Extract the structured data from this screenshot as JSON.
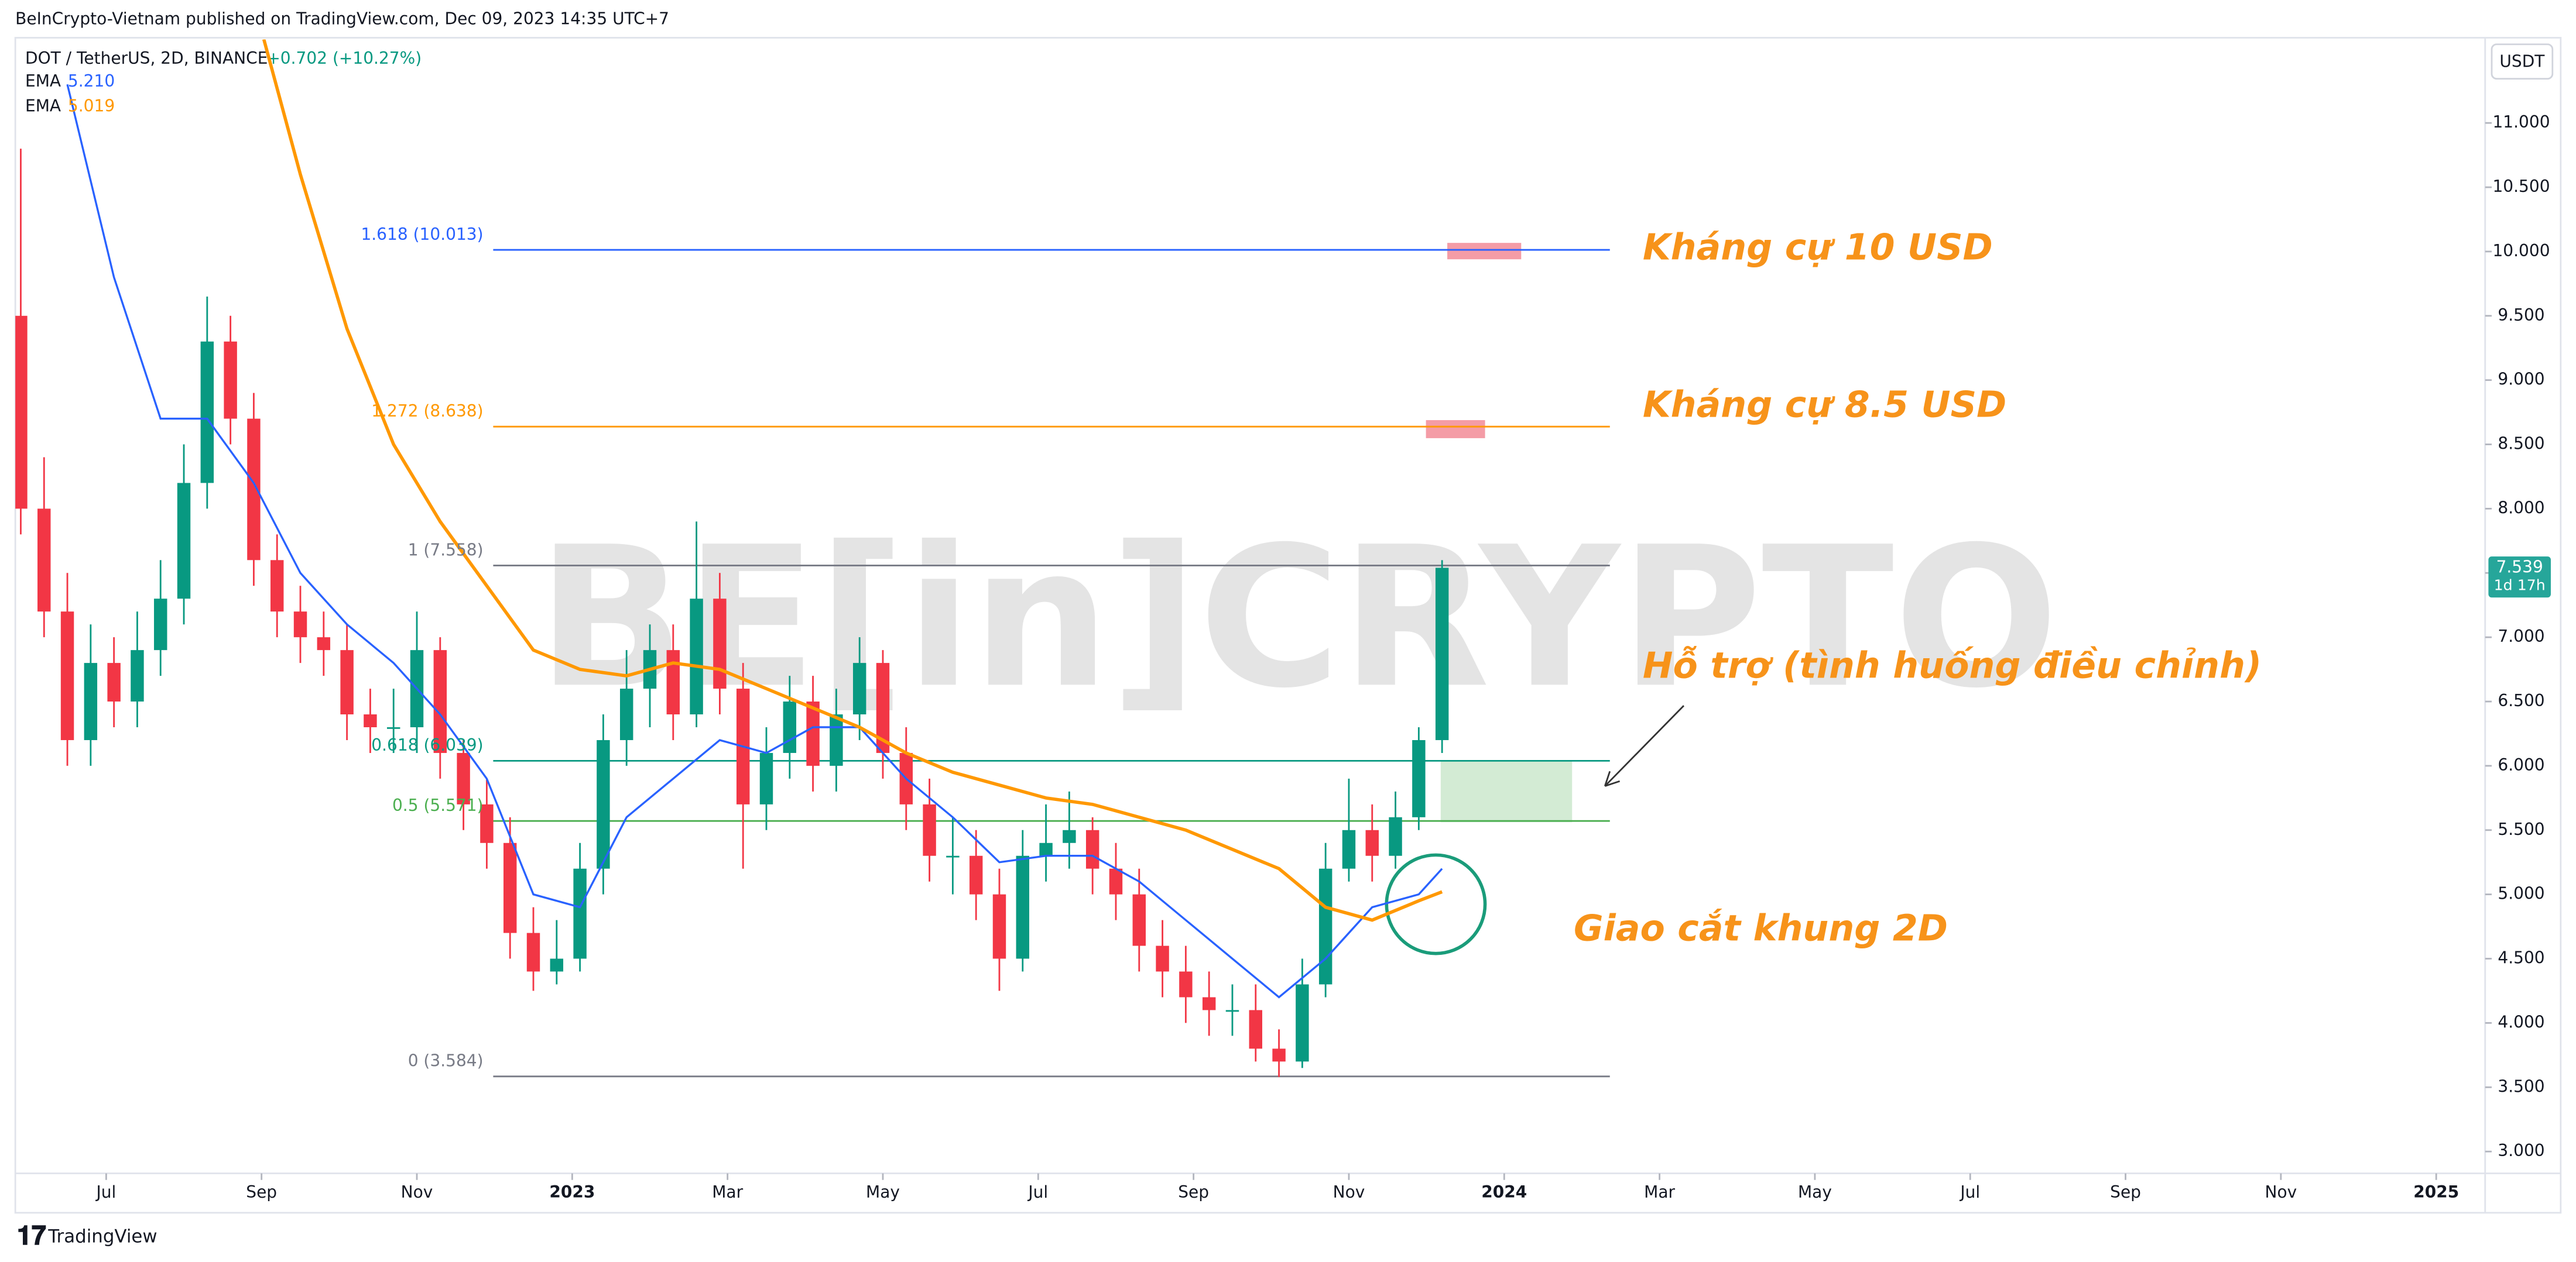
{
  "chart_data": {
    "type": "candlestick",
    "header": "BeInCrypto-Vietnam published on TradingView.com, Dec 09, 2023 14:35 UTC+7",
    "symbol": "DOT / TetherUS, 2D, BINANCE",
    "change": "+0.702 (+10.27%)",
    "currency": "USDT",
    "watermark": "BE[in]CRYPTO",
    "footer": "TradingView",
    "up_color": "#089981",
    "down_color": "#f23645",
    "xlim": [
      -7.17,
      24.63
    ],
    "xticks": [
      {
        "value": -6,
        "label": "Jul"
      },
      {
        "value": -4,
        "label": "Sep"
      },
      {
        "value": -2,
        "label": "Nov"
      },
      {
        "value": 0,
        "label": "2023"
      },
      {
        "value": 2,
        "label": "Mar"
      },
      {
        "value": 4,
        "label": "May"
      },
      {
        "value": 6,
        "label": "Jul"
      },
      {
        "value": 8,
        "label": "Sep"
      },
      {
        "value": 10,
        "label": "Nov"
      },
      {
        "value": 12,
        "label": "2024"
      },
      {
        "value": 14,
        "label": "Mar"
      },
      {
        "value": 16,
        "label": "May"
      },
      {
        "value": 18,
        "label": "Jul"
      },
      {
        "value": 20,
        "label": "Sep"
      },
      {
        "value": 22,
        "label": "Nov"
      },
      {
        "value": 24,
        "label": "2025"
      }
    ],
    "ylim": [
      2.83,
      11.65
    ],
    "yticks": [
      {
        "value": 3,
        "label": "3.000"
      },
      {
        "value": 3.5,
        "label": "3.500"
      },
      {
        "value": 4,
        "label": "4.000"
      },
      {
        "value": 4.5,
        "label": "4.500"
      },
      {
        "value": 5,
        "label": "5.000"
      },
      {
        "value": 5.5,
        "label": "5.500"
      },
      {
        "value": 6,
        "label": "6.000"
      },
      {
        "value": 6.5,
        "label": "6.500"
      },
      {
        "value": 7,
        "label": "7.000"
      },
      {
        "value": 7.5,
        "label": "7.500"
      },
      {
        "value": 8,
        "label": "8.000"
      },
      {
        "value": 8.5,
        "label": "8.500"
      },
      {
        "value": 9,
        "label": "9.000"
      },
      {
        "value": 9.5,
        "label": "9.500"
      },
      {
        "value": 10,
        "label": "10.000"
      },
      {
        "value": 10.5,
        "label": "10.500"
      },
      {
        "value": 11,
        "label": "11.000"
      }
    ],
    "last_price": {
      "value": 7.539,
      "label": "7.539",
      "countdown": "1d 17h"
    },
    "candles": {
      "x": [
        -7.1,
        -6.8,
        -6.5,
        -6.2,
        -5.9,
        -5.6,
        -5.3,
        -5.0,
        -4.7,
        -4.4,
        -4.1,
        -3.8,
        -3.5,
        -3.2,
        -2.9,
        -2.6,
        -2.3,
        -2.0,
        -1.7,
        -1.4,
        -1.1,
        -0.8,
        -0.5,
        -0.2,
        0.1,
        0.4,
        0.7,
        1.0,
        1.3,
        1.6,
        1.9,
        2.2,
        2.5,
        2.8,
        3.1,
        3.4,
        3.7,
        4.0,
        4.3,
        4.6,
        4.9,
        5.2,
        5.5,
        5.8,
        6.1,
        6.4,
        6.7,
        7.0,
        7.3,
        7.6,
        7.9,
        8.2,
        8.5,
        8.8,
        9.1,
        9.4,
        9.7,
        10.0,
        10.3,
        10.6,
        10.9,
        11.2
      ],
      "open": [
        9.5,
        8.0,
        7.2,
        6.2,
        6.8,
        6.5,
        6.9,
        7.3,
        8.2,
        9.3,
        8.7,
        7.6,
        7.2,
        7.0,
        6.9,
        6.4,
        6.3,
        6.3,
        6.9,
        6.1,
        5.7,
        5.4,
        4.7,
        4.4,
        4.5,
        5.2,
        6.2,
        6.6,
        6.9,
        6.4,
        7.3,
        6.6,
        5.7,
        6.1,
        6.5,
        6.0,
        6.4,
        6.8,
        6.1,
        5.7,
        5.3,
        5.3,
        5.0,
        4.5,
        5.3,
        5.4,
        5.5,
        5.2,
        5.0,
        4.6,
        4.4,
        4.2,
        4.1,
        4.1,
        3.8,
        3.7,
        4.3,
        5.2,
        5.5,
        5.3,
        5.6,
        6.2
      ],
      "high": [
        10.8,
        8.4,
        7.5,
        7.1,
        7.0,
        7.2,
        7.6,
        8.5,
        9.65,
        9.5,
        8.9,
        7.8,
        7.4,
        7.2,
        7.1,
        6.6,
        6.6,
        7.2,
        7.0,
        6.2,
        5.9,
        5.6,
        4.9,
        4.8,
        5.4,
        6.4,
        6.9,
        7.1,
        7.1,
        7.9,
        7.5,
        6.8,
        6.3,
        6.7,
        6.7,
        6.6,
        7.0,
        6.9,
        6.3,
        5.9,
        5.6,
        5.5,
        5.2,
        5.5,
        5.7,
        5.8,
        5.6,
        5.4,
        5.2,
        4.8,
        4.6,
        4.4,
        4.3,
        4.3,
        3.95,
        4.5,
        5.4,
        5.9,
        5.7,
        5.8,
        6.3,
        7.6
      ],
      "low": [
        7.8,
        7.0,
        6.0,
        6.0,
        6.3,
        6.3,
        6.7,
        7.1,
        8.0,
        8.5,
        7.4,
        7.0,
        6.8,
        6.7,
        6.2,
        6.1,
        6.1,
        6.1,
        5.9,
        5.5,
        5.2,
        4.5,
        4.25,
        4.3,
        4.4,
        5.0,
        6.0,
        6.3,
        6.2,
        6.3,
        6.4,
        5.2,
        5.5,
        5.9,
        5.8,
        5.8,
        6.2,
        5.9,
        5.5,
        5.1,
        5.0,
        4.8,
        4.25,
        4.4,
        5.1,
        5.2,
        5.0,
        4.8,
        4.4,
        4.2,
        4.0,
        3.9,
        3.9,
        3.7,
        3.58,
        3.65,
        4.2,
        5.1,
        5.1,
        5.2,
        5.5,
        6.1
      ],
      "close": [
        8.0,
        7.2,
        6.2,
        6.8,
        6.5,
        6.9,
        7.3,
        8.2,
        9.3,
        8.7,
        7.6,
        7.2,
        7.0,
        6.9,
        6.4,
        6.3,
        6.3,
        6.9,
        6.1,
        5.7,
        5.4,
        4.7,
        4.4,
        4.5,
        5.2,
        6.2,
        6.6,
        6.9,
        6.4,
        7.3,
        6.6,
        5.7,
        6.1,
        6.5,
        6.0,
        6.4,
        6.8,
        6.1,
        5.7,
        5.3,
        5.3,
        5.0,
        4.5,
        5.3,
        5.4,
        5.5,
        5.2,
        5.0,
        4.6,
        4.4,
        4.2,
        4.1,
        4.1,
        3.8,
        3.7,
        4.3,
        5.2,
        5.5,
        5.3,
        5.6,
        6.2,
        7.54
      ]
    },
    "series": [
      {
        "name": "EMA",
        "legend_value": "5.210",
        "color": "#2962ff",
        "x": [
          -6.5,
          -5.9,
          -5.3,
          -4.7,
          -4.1,
          -3.5,
          -2.9,
          -2.3,
          -1.7,
          -1.1,
          -0.5,
          0.1,
          0.7,
          1.3,
          1.9,
          2.5,
          3.1,
          3.7,
          4.3,
          4.9,
          5.5,
          6.1,
          6.7,
          7.3,
          7.9,
          8.5,
          9.1,
          9.7,
          10.3,
          10.9,
          11.2
        ],
        "values": [
          11.3,
          9.8,
          8.7,
          8.7,
          8.2,
          7.5,
          7.1,
          6.8,
          6.4,
          5.9,
          5.0,
          4.9,
          5.6,
          5.9,
          6.2,
          6.1,
          6.3,
          6.3,
          5.9,
          5.6,
          5.25,
          5.3,
          5.3,
          5.1,
          4.8,
          4.5,
          4.2,
          4.5,
          4.9,
          5.0,
          5.2
        ]
      },
      {
        "name": "EMA",
        "legend_value": "5.019",
        "color": "#ff9800",
        "x": [
          -3.97,
          -3.5,
          -2.9,
          -2.3,
          -1.7,
          -1.1,
          -0.5,
          0.1,
          0.7,
          1.3,
          1.9,
          2.5,
          3.1,
          3.7,
          4.3,
          4.9,
          5.5,
          6.1,
          6.7,
          7.3,
          7.9,
          8.5,
          9.1,
          9.7,
          10.3,
          10.9,
          11.2
        ],
        "values": [
          11.65,
          10.6,
          9.4,
          8.5,
          7.9,
          7.4,
          6.9,
          6.75,
          6.7,
          6.8,
          6.75,
          6.6,
          6.45,
          6.3,
          6.1,
          5.95,
          5.85,
          5.75,
          5.7,
          5.6,
          5.5,
          5.35,
          5.2,
          4.9,
          4.8,
          4.95,
          5.02
        ]
      }
    ],
    "fib_levels": [
      {
        "label": "1.618 (10.013)",
        "value": 10.013,
        "color": "#2962ff"
      },
      {
        "label": "1.272 (8.638)",
        "value": 8.638,
        "color": "#ff9800"
      },
      {
        "label": "1 (7.558)",
        "value": 7.558,
        "color": "#787b86"
      },
      {
        "label": "0.618 (6.039)",
        "value": 6.039,
        "color": "#089981"
      },
      {
        "label": "0.5 (5.571)",
        "value": 5.571,
        "color": "#4caf50"
      },
      {
        "label": "0 (3.584)",
        "value": 3.584,
        "color": "#787b86"
      }
    ],
    "annotations": [
      "Kháng cự 10 USD",
      "Kháng cự 8.5 USD",
      "Hỗ trợ (tình huống điều chỉnh)",
      "Giao cắt khung 2D"
    ]
  }
}
